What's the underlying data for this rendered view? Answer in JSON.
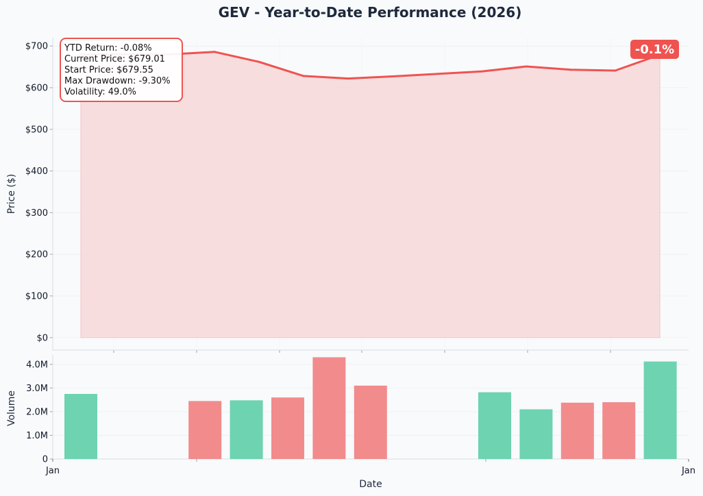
{
  "chart_data": [
    {
      "type": "area",
      "title": "GEV - Year-to-Date Performance (2026)",
      "ylabel": "Price ($)",
      "ylim": [
        -30,
        720
      ],
      "y_ticks": [
        0,
        100,
        200,
        300,
        400,
        500,
        600,
        700
      ],
      "y_tick_labels": [
        "$0",
        "$100",
        "$200",
        "$300",
        "$400",
        "$500",
        "$600",
        "$700"
      ],
      "series": [
        {
          "values": [
            679.55,
            680,
            680,
            686,
            662,
            628,
            622,
            627,
            633,
            639,
            651,
            643,
            641,
            679.01
          ]
        }
      ],
      "color": "#ef5350",
      "fill_color": "#f7d9dc",
      "grid": true,
      "badge": "-0.1%",
      "badge_color": "#ef5350",
      "stats_box": {
        "ytd_return": "YTD Return: -0.08%",
        "current_price": "Current Price: $679.01",
        "start_price": "Start Price: $679.55",
        "max_drawdown": "Max Drawdown: -9.30%",
        "volatility": "Volatility: 49.0%"
      }
    },
    {
      "type": "bar",
      "ylabel": "Volume",
      "xlabel": "Date",
      "ylim": [
        0,
        4400000
      ],
      "y_ticks": [
        0,
        1000000,
        2000000,
        3000000,
        4000000
      ],
      "y_tick_labels": [
        "0",
        "1.0M",
        "2.0M",
        "3.0M",
        "4.0M"
      ],
      "x_tick_labels": [
        "Jan",
        "Jan"
      ],
      "values": [
        2750000,
        0,
        0,
        2450000,
        2480000,
        2600000,
        4300000,
        3100000,
        0,
        0,
        2820000,
        2100000,
        2380000,
        2400000,
        4120000
      ],
      "bar_colors": [
        "up",
        "none",
        "none",
        "down",
        "up",
        "down",
        "down",
        "down",
        "none",
        "none",
        "up",
        "up",
        "down",
        "down",
        "up"
      ],
      "up_color": "#6dd3b0",
      "down_color": "#f28b8c"
    }
  ]
}
